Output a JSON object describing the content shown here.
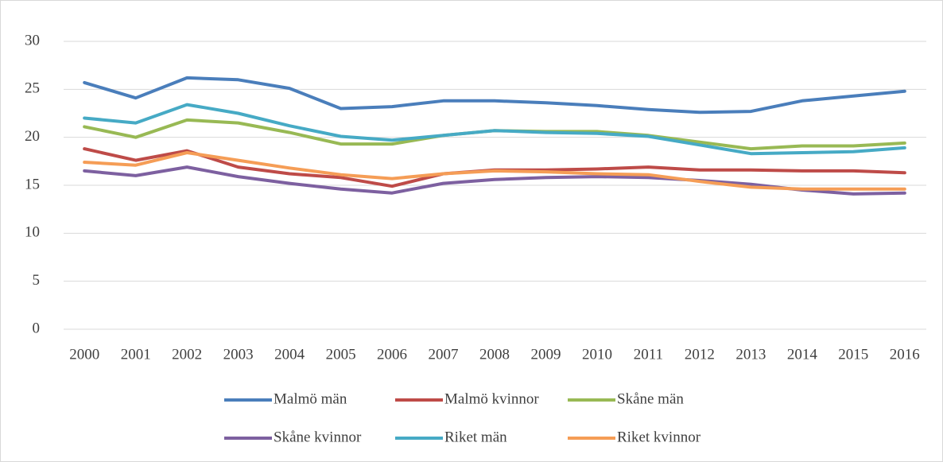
{
  "chart_data": {
    "type": "line",
    "categories": [
      "2000",
      "2001",
      "2002",
      "2003",
      "2004",
      "2005",
      "2006",
      "2007",
      "2008",
      "2009",
      "2010",
      "2011",
      "2012",
      "2013",
      "2014",
      "2015",
      "2016"
    ],
    "series": [
      {
        "name": "Malmö män",
        "color": "#4a7ebb",
        "values": [
          25.7,
          24.1,
          26.2,
          26.0,
          25.1,
          23.0,
          23.2,
          23.8,
          23.8,
          23.6,
          23.3,
          22.9,
          22.6,
          22.7,
          23.8,
          24.3,
          24.8
        ]
      },
      {
        "name": "Malmö kvinnor",
        "color": "#be4b48",
        "values": [
          18.8,
          17.6,
          18.6,
          16.9,
          16.2,
          15.8,
          14.9,
          16.2,
          16.6,
          16.6,
          16.7,
          16.9,
          16.6,
          16.6,
          16.5,
          16.5,
          16.3
        ]
      },
      {
        "name": "Skåne män",
        "color": "#98b954",
        "values": [
          21.1,
          20.0,
          21.8,
          21.5,
          20.5,
          19.3,
          19.3,
          20.2,
          20.7,
          20.6,
          20.6,
          20.2,
          19.5,
          18.8,
          19.1,
          19.1,
          19.4
        ]
      },
      {
        "name": "Skåne kvinnor",
        "color": "#7d60a0",
        "values": [
          16.5,
          16.0,
          16.9,
          15.9,
          15.2,
          14.6,
          14.2,
          15.2,
          15.6,
          15.8,
          15.9,
          15.8,
          15.5,
          15.1,
          14.5,
          14.1,
          14.2
        ]
      },
      {
        "name": "Riket män",
        "color": "#46aac5",
        "values": [
          22.0,
          21.5,
          23.4,
          22.5,
          21.2,
          20.1,
          19.7,
          20.2,
          20.7,
          20.5,
          20.4,
          20.1,
          19.2,
          18.3,
          18.4,
          18.5,
          18.9
        ]
      },
      {
        "name": "Riket kvinnor",
        "color": "#f59d56",
        "values": [
          17.4,
          17.1,
          18.4,
          17.6,
          16.8,
          16.1,
          15.7,
          16.2,
          16.5,
          16.4,
          16.2,
          16.1,
          15.4,
          14.8,
          14.6,
          14.6,
          14.6
        ]
      }
    ],
    "ylim": [
      0,
      30
    ],
    "yticks": [
      0,
      5,
      10,
      15,
      20,
      25,
      30
    ],
    "grid": true,
    "legend": "bottom"
  }
}
